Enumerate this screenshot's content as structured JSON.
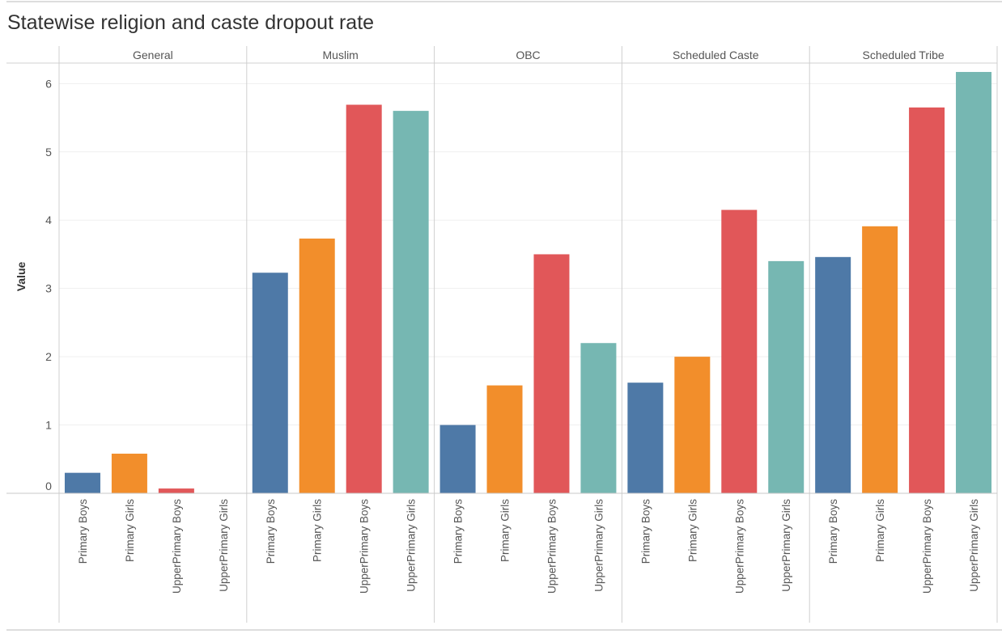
{
  "title": "Statewise religion and caste dropout rate",
  "chart_data": {
    "type": "bar",
    "title": "Statewise religion and caste dropout rate",
    "ylabel": "Value",
    "xlabel": "",
    "ylim": [
      0,
      6.3
    ],
    "yticks": [
      0,
      1,
      2,
      3,
      4,
      5,
      6
    ],
    "grid": true,
    "legend": "none",
    "panes": [
      "General",
      "Muslim",
      "OBC",
      "Scheduled Caste",
      "Scheduled Tribe"
    ],
    "categories": [
      "Primary Boys",
      "Primary Girls",
      "UpperPrimary Boys",
      "UpperPrimary Girls"
    ],
    "colors": [
      "#4e79a7",
      "#f28e2b",
      "#e15759",
      "#76b7b2"
    ],
    "series": [
      {
        "pane": "General",
        "values": [
          0.3,
          0.58,
          0.07,
          0
        ]
      },
      {
        "pane": "Muslim",
        "values": [
          3.23,
          3.73,
          5.69,
          5.6
        ]
      },
      {
        "pane": "OBC",
        "values": [
          1.0,
          1.58,
          3.5,
          2.2
        ]
      },
      {
        "pane": "Scheduled Caste",
        "values": [
          1.62,
          2.0,
          4.15,
          3.4
        ]
      },
      {
        "pane": "Scheduled Tribe",
        "values": [
          3.46,
          3.91,
          5.65,
          6.17
        ]
      }
    ]
  }
}
